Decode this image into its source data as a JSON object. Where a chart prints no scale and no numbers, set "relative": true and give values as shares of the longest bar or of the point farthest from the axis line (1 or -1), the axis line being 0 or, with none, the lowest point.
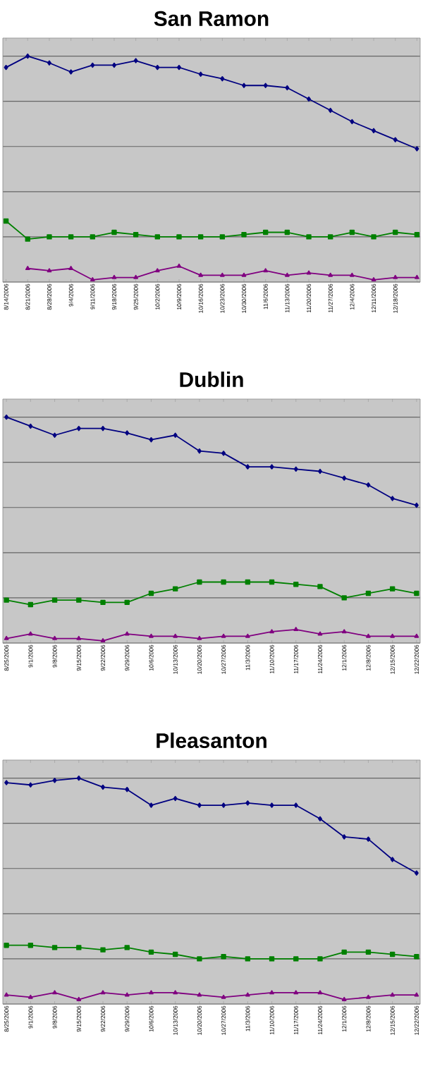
{
  "chart_data": [
    {
      "type": "line",
      "title": "San Ramon",
      "relative": true,
      "grid": "y",
      "tick_labels": "x",
      "categories": [
        "8/14/2006",
        "8/21/2006",
        "8/28/2006",
        "9/4/2006",
        "9/11/2006",
        "9/18/2006",
        "9/25/2006",
        "10/2/2006",
        "10/9/2006",
        "10/16/2006",
        "10/23/2006",
        "10/30/2006",
        "11/6/2006",
        "11/13/2006",
        "11/20/2006",
        "11/27/2006",
        "12/4/2006",
        "12/11/2006",
        "12/18/2006",
        null
      ],
      "series": [
        {
          "color": "#000080",
          "marker": "diamond",
          "values": [
            0.95,
            1.0,
            0.97,
            0.93,
            0.96,
            0.96,
            0.98,
            0.95,
            0.95,
            0.92,
            0.9,
            0.87,
            0.87,
            0.86,
            0.81,
            0.76,
            0.71,
            0.67,
            0.63,
            0.59
          ]
        },
        {
          "color": "#008000",
          "marker": "square",
          "values": [
            0.27,
            0.19,
            0.2,
            0.2,
            0.2,
            0.22,
            0.21,
            0.2,
            0.2,
            0.2,
            0.2,
            0.21,
            0.22,
            0.22,
            0.2,
            0.2,
            0.22,
            0.2,
            0.22,
            0.21
          ]
        },
        {
          "color": "#800080",
          "marker": "triangle",
          "values": [
            null,
            0.06,
            0.05,
            0.06,
            0.01,
            0.02,
            0.02,
            0.05,
            0.07,
            0.03,
            0.03,
            0.03,
            0.05,
            0.03,
            0.04,
            0.03,
            0.03,
            0.01,
            0.02,
            0.02
          ]
        }
      ]
    },
    {
      "type": "line",
      "title": "Dublin",
      "relative": true,
      "grid": "y",
      "tick_labels": "x",
      "categories": [
        "8/25/2006",
        "9/1/2006",
        "9/8/2006",
        "9/15/2006",
        "9/22/2006",
        "9/29/2006",
        "10/6/2006",
        "10/13/2006",
        "10/20/2006",
        "10/27/2006",
        "11/3/2006",
        "11/10/2006",
        "11/17/2006",
        "11/24/2006",
        "12/1/2006",
        "12/8/2006",
        "12/15/2006",
        "12/22/2006"
      ],
      "series": [
        {
          "color": "#000080",
          "marker": "diamond",
          "values": [
            1.0,
            0.96,
            0.92,
            0.95,
            0.95,
            0.93,
            0.9,
            0.92,
            0.85,
            0.84,
            0.78,
            0.78,
            0.77,
            0.76,
            0.73,
            0.7,
            0.64,
            0.61
          ]
        },
        {
          "color": "#008000",
          "marker": "square",
          "values": [
            0.19,
            0.17,
            0.19,
            0.19,
            0.18,
            0.18,
            0.22,
            0.24,
            0.27,
            0.27,
            0.27,
            0.27,
            0.26,
            0.25,
            0.2,
            0.22,
            0.24,
            0.22
          ]
        },
        {
          "color": "#800080",
          "marker": "triangle",
          "values": [
            0.02,
            0.04,
            0.02,
            0.02,
            0.01,
            0.04,
            0.03,
            0.03,
            0.02,
            0.03,
            0.03,
            0.05,
            0.06,
            0.04,
            0.05,
            0.03,
            0.03,
            0.03
          ]
        }
      ]
    },
    {
      "type": "line",
      "title": "Pleasanton",
      "relative": true,
      "grid": "y",
      "tick_labels": "x",
      "categories": [
        "8/25/2006",
        "9/1/2006",
        "9/8/2006",
        "9/15/2006",
        "9/22/2006",
        "9/29/2006",
        "10/6/2006",
        "10/13/2006",
        "10/20/2006",
        "10/27/2006",
        "11/3/2006",
        "11/10/2006",
        "11/17/2006",
        "11/24/2006",
        "12/1/2006",
        "12/8/2006",
        "12/15/2006",
        "12/22/2006"
      ],
      "series": [
        {
          "color": "#000080",
          "marker": "diamond",
          "values": [
            0.98,
            0.97,
            0.99,
            1.0,
            0.96,
            0.95,
            0.88,
            0.91,
            0.88,
            0.88,
            0.89,
            0.88,
            0.88,
            0.82,
            0.74,
            0.73,
            0.64,
            0.58
          ]
        },
        {
          "color": "#008000",
          "marker": "square",
          "values": [
            0.26,
            0.26,
            0.25,
            0.25,
            0.24,
            0.25,
            0.23,
            0.22,
            0.2,
            0.21,
            0.2,
            0.2,
            0.2,
            0.2,
            0.23,
            0.23,
            0.22,
            0.21
          ]
        },
        {
          "color": "#800080",
          "marker": "triangle",
          "values": [
            0.04,
            0.03,
            0.05,
            0.02,
            0.05,
            0.04,
            0.05,
            0.05,
            0.04,
            0.03,
            0.04,
            0.05,
            0.05,
            0.05,
            0.02,
            0.03,
            0.04,
            0.04
          ]
        }
      ]
    }
  ]
}
